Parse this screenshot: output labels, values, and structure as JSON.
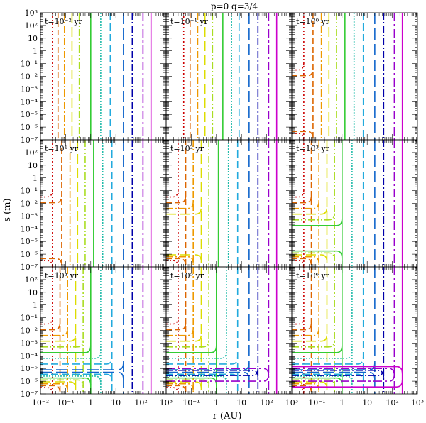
{
  "chart_data": {
    "type": "line",
    "title": "p=0   q=3/4",
    "xlabel": "r  (AU)",
    "ylabel": "s  (m)",
    "x_scale": "log",
    "y_scale": "log",
    "xlim": [
      0.01,
      1000
    ],
    "ylim": [
      1e-07,
      1000
    ],
    "x_tick_labels": [
      "10⁻²",
      "10⁻¹",
      "1",
      "10",
      "10²",
      "10³"
    ],
    "y_tick_labels": [
      "10³",
      "10²",
      "10",
      "1",
      "10⁻¹",
      "10⁻²",
      "10⁻³",
      "10⁻⁴",
      "10⁻⁵",
      "10⁻⁶",
      "10⁻⁷"
    ],
    "grid": false,
    "layout": "3x3 panels sharing axes",
    "contour_colors": [
      "#cc0000",
      "#dd6600",
      "#ee9900",
      "#dddd00",
      "#aadd22",
      "#33cc33",
      "#22bbaa",
      "#22aadd",
      "#1166cc",
      "#0000aa",
      "#9900cc",
      "#cc00cc",
      "#000000"
    ],
    "contour_dashes": [
      "2,3",
      "8,4",
      "10,3,2,3",
      "14,6",
      "10,3,2,3,2,3",
      "none",
      "2,2",
      "10,5",
      "16,6",
      "10,3,2,3",
      "12,4,3,4",
      "none"
    ],
    "panels": [
      {
        "label": "t=10⁻² yr",
        "n_boundary_contours": 0,
        "r_edges": [
          0.03,
          0.05,
          0.09,
          0.18,
          0.35,
          1.0,
          2.5,
          6,
          20,
          45,
          120,
          250
        ]
      },
      {
        "label": "t=10⁻¹ yr",
        "n_boundary_contours": 0,
        "r_edges": [
          0.05,
          0.09,
          0.18,
          0.35,
          0.7,
          1.8,
          4,
          8,
          20,
          45,
          120,
          250
        ]
      },
      {
        "label": "t=10⁰ yr",
        "n_boundary_contours": 2,
        "r_edges": [
          0.03,
          0.07,
          0.15,
          0.3,
          0.6,
          1.3,
          3,
          7,
          20,
          45,
          120,
          250
        ]
      },
      {
        "label": "t=10¹ yr",
        "n_boundary_contours": 2,
        "r_edges": [
          0.03,
          0.07,
          0.15,
          0.3,
          0.6,
          1.3,
          3,
          7,
          20,
          45,
          120,
          250
        ]
      },
      {
        "label": "t=10² yr",
        "n_boundary_contours": 4,
        "r_edges": [
          0.03,
          0.06,
          0.12,
          0.25,
          0.5,
          1.2,
          3,
          7,
          20,
          45,
          120,
          250
        ]
      },
      {
        "label": "t=10³ yr",
        "n_boundary_contours": 6,
        "r_edges": [
          0.03,
          0.06,
          0.12,
          0.25,
          0.5,
          1.0,
          2.5,
          7,
          20,
          45,
          120,
          250
        ]
      },
      {
        "label": "t=10⁴ yr",
        "n_boundary_contours": 9,
        "r_edges": [
          0.03,
          0.06,
          0.12,
          0.25,
          0.5,
          1.0,
          2.5,
          7,
          20,
          45,
          120,
          250
        ]
      },
      {
        "label": "t=10⁵ yr",
        "n_boundary_contours": 11,
        "r_edges": [
          0.03,
          0.06,
          0.12,
          0.25,
          0.5,
          1.0,
          2.5,
          7,
          20,
          45,
          120,
          250
        ]
      },
      {
        "label": "t=10⁶ yr",
        "n_boundary_contours": 12,
        "r_edges": [
          0.03,
          0.06,
          0.12,
          0.25,
          0.5,
          1.0,
          2.5,
          7,
          20,
          45,
          120,
          250
        ]
      }
    ]
  }
}
